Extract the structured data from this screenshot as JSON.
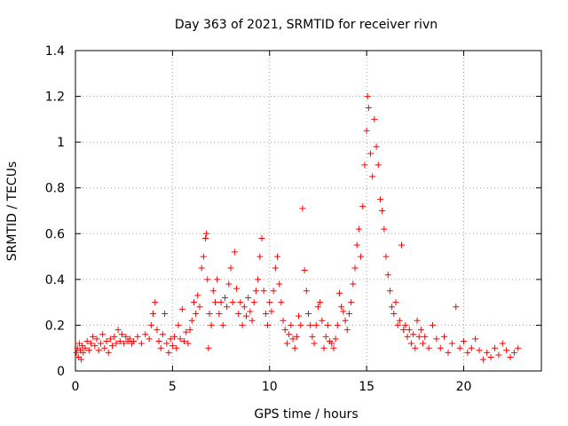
{
  "chart_data": {
    "type": "scatter",
    "title": "Day 363 of 2021, SRMTID for receiver rivn",
    "xlabel": "GPS time / hours",
    "ylabel": "SRMTID / TECUs",
    "xlim": [
      0,
      24
    ],
    "ylim": [
      0,
      1.4
    ],
    "xticks": [
      0,
      5,
      10,
      15,
      20
    ],
    "yticks": [
      0,
      0.2,
      0.4,
      0.6,
      0.8,
      1,
      1.2,
      1.4
    ],
    "xtick_labels": [
      "0",
      "5",
      "10",
      "15",
      "20"
    ],
    "ytick_labels": [
      "0",
      "0.2",
      "0.4",
      "0.6",
      "0.8",
      "1",
      "1.2",
      "1.4"
    ],
    "grid": true,
    "marker": "+",
    "color": "#ff0000",
    "series": [
      {
        "name": "SRMTID",
        "points": [
          [
            0.05,
            0.08
          ],
          [
            0.1,
            0.1
          ],
          [
            0.15,
            0.06
          ],
          [
            0.2,
            0.12
          ],
          [
            0.25,
            0.09
          ],
          [
            0.3,
            0.05
          ],
          [
            0.35,
            0.11
          ],
          [
            0.4,
            0.08
          ],
          [
            0.5,
            0.1
          ],
          [
            0.6,
            0.13
          ],
          [
            0.7,
            0.09
          ],
          [
            0.8,
            0.12
          ],
          [
            0.9,
            0.15
          ],
          [
            1.0,
            0.11
          ],
          [
            1.1,
            0.14
          ],
          [
            1.2,
            0.09
          ],
          [
            1.3,
            0.12
          ],
          [
            1.4,
            0.16
          ],
          [
            1.5,
            0.1
          ],
          [
            1.6,
            0.13
          ],
          [
            1.7,
            0.08
          ],
          [
            1.8,
            0.14
          ],
          [
            1.9,
            0.11
          ],
          [
            2.0,
            0.15
          ],
          [
            2.1,
            0.12
          ],
          [
            2.2,
            0.18
          ],
          [
            2.3,
            0.13
          ],
          [
            2.4,
            0.16
          ],
          [
            2.5,
            0.12
          ],
          [
            2.6,
            0.15
          ],
          [
            2.7,
            0.13
          ],
          [
            2.8,
            0.14
          ],
          [
            2.9,
            0.12
          ],
          [
            3.0,
            0.13
          ],
          [
            3.2,
            0.15
          ],
          [
            3.4,
            0.12
          ],
          [
            3.6,
            0.16
          ],
          [
            3.8,
            0.14
          ],
          [
            3.9,
            0.2
          ],
          [
            4.0,
            0.25
          ],
          [
            4.1,
            0.3
          ],
          [
            4.2,
            0.18
          ],
          [
            4.3,
            0.13
          ],
          [
            4.4,
            0.1
          ],
          [
            4.5,
            0.16
          ],
          [
            4.6,
            0.25
          ],
          [
            4.7,
            0.12
          ],
          [
            4.8,
            0.08
          ],
          [
            4.9,
            0.14
          ],
          [
            5.0,
            0.11
          ],
          [
            5.1,
            0.15
          ],
          [
            5.2,
            0.1
          ],
          [
            5.3,
            0.2
          ],
          [
            5.4,
            0.14
          ],
          [
            5.5,
            0.27
          ],
          [
            5.6,
            0.13
          ],
          [
            5.7,
            0.17
          ],
          [
            5.8,
            0.12
          ],
          [
            5.9,
            0.18
          ],
          [
            6.0,
            0.22
          ],
          [
            6.1,
            0.3
          ],
          [
            6.2,
            0.25
          ],
          [
            6.3,
            0.33
          ],
          [
            6.4,
            0.28
          ],
          [
            6.5,
            0.45
          ],
          [
            6.6,
            0.5
          ],
          [
            6.7,
            0.58
          ],
          [
            6.75,
            0.6
          ],
          [
            6.8,
            0.4
          ],
          [
            6.85,
            0.1
          ],
          [
            6.9,
            0.25
          ],
          [
            7.0,
            0.2
          ],
          [
            7.1,
            0.35
          ],
          [
            7.2,
            0.3
          ],
          [
            7.3,
            0.4
          ],
          [
            7.4,
            0.25
          ],
          [
            7.5,
            0.3
          ],
          [
            7.6,
            0.2
          ],
          [
            7.7,
            0.32
          ],
          [
            7.8,
            0.28
          ],
          [
            7.9,
            0.38
          ],
          [
            8.0,
            0.45
          ],
          [
            8.1,
            0.3
          ],
          [
            8.2,
            0.52
          ],
          [
            8.3,
            0.36
          ],
          [
            8.4,
            0.25
          ],
          [
            8.5,
            0.3
          ],
          [
            8.6,
            0.2
          ],
          [
            8.7,
            0.28
          ],
          [
            8.8,
            0.24
          ],
          [
            8.9,
            0.32
          ],
          [
            9.0,
            0.26
          ],
          [
            9.1,
            0.22
          ],
          [
            9.2,
            0.3
          ],
          [
            9.3,
            0.35
          ],
          [
            9.4,
            0.4
          ],
          [
            9.5,
            0.5
          ],
          [
            9.6,
            0.58
          ],
          [
            9.7,
            0.35
          ],
          [
            9.8,
            0.25
          ],
          [
            9.9,
            0.2
          ],
          [
            10.0,
            0.3
          ],
          [
            10.1,
            0.26
          ],
          [
            10.2,
            0.35
          ],
          [
            10.3,
            0.45
          ],
          [
            10.4,
            0.5
          ],
          [
            10.5,
            0.38
          ],
          [
            10.6,
            0.3
          ],
          [
            10.7,
            0.22
          ],
          [
            10.8,
            0.18
          ],
          [
            10.9,
            0.12
          ],
          [
            11.0,
            0.16
          ],
          [
            11.1,
            0.2
          ],
          [
            11.2,
            0.14
          ],
          [
            11.3,
            0.1
          ],
          [
            11.4,
            0.15
          ],
          [
            11.5,
            0.24
          ],
          [
            11.6,
            0.2
          ],
          [
            11.7,
            0.71
          ],
          [
            11.8,
            0.44
          ],
          [
            11.9,
            0.35
          ],
          [
            12.0,
            0.25
          ],
          [
            12.1,
            0.2
          ],
          [
            12.2,
            0.15
          ],
          [
            12.3,
            0.12
          ],
          [
            12.4,
            0.2
          ],
          [
            12.5,
            0.28
          ],
          [
            12.6,
            0.3
          ],
          [
            12.7,
            0.22
          ],
          [
            12.8,
            0.1
          ],
          [
            12.9,
            0.15
          ],
          [
            13.0,
            0.2
          ],
          [
            13.1,
            0.13
          ],
          [
            13.2,
            0.12
          ],
          [
            13.3,
            0.1
          ],
          [
            13.4,
            0.14
          ],
          [
            13.5,
            0.2
          ],
          [
            13.6,
            0.34
          ],
          [
            13.7,
            0.28
          ],
          [
            13.8,
            0.26
          ],
          [
            13.9,
            0.22
          ],
          [
            14.0,
            0.18
          ],
          [
            14.1,
            0.25
          ],
          [
            14.2,
            0.3
          ],
          [
            14.3,
            0.38
          ],
          [
            14.4,
            0.45
          ],
          [
            14.5,
            0.55
          ],
          [
            14.6,
            0.62
          ],
          [
            14.7,
            0.5
          ],
          [
            14.8,
            0.72
          ],
          [
            14.9,
            0.9
          ],
          [
            15.0,
            1.05
          ],
          [
            15.05,
            1.2
          ],
          [
            15.1,
            1.15
          ],
          [
            15.2,
            0.95
          ],
          [
            15.3,
            0.85
          ],
          [
            15.4,
            1.1
          ],
          [
            15.5,
            0.98
          ],
          [
            15.6,
            0.9
          ],
          [
            15.7,
            0.75
          ],
          [
            15.8,
            0.7
          ],
          [
            15.9,
            0.62
          ],
          [
            16.0,
            0.5
          ],
          [
            16.1,
            0.42
          ],
          [
            16.2,
            0.35
          ],
          [
            16.3,
            0.28
          ],
          [
            16.4,
            0.25
          ],
          [
            16.5,
            0.3
          ],
          [
            16.6,
            0.2
          ],
          [
            16.7,
            0.22
          ],
          [
            16.8,
            0.55
          ],
          [
            16.9,
            0.18
          ],
          [
            17.0,
            0.2
          ],
          [
            17.1,
            0.15
          ],
          [
            17.2,
            0.18
          ],
          [
            17.3,
            0.12
          ],
          [
            17.4,
            0.16
          ],
          [
            17.5,
            0.1
          ],
          [
            17.6,
            0.22
          ],
          [
            17.7,
            0.15
          ],
          [
            17.8,
            0.18
          ],
          [
            17.9,
            0.12
          ],
          [
            18.0,
            0.15
          ],
          [
            18.2,
            0.1
          ],
          [
            18.4,
            0.2
          ],
          [
            18.6,
            0.14
          ],
          [
            18.8,
            0.1
          ],
          [
            19.0,
            0.15
          ],
          [
            19.2,
            0.08
          ],
          [
            19.4,
            0.12
          ],
          [
            19.6,
            0.28
          ],
          [
            19.8,
            0.1
          ],
          [
            20.0,
            0.13
          ],
          [
            20.2,
            0.08
          ],
          [
            20.4,
            0.1
          ],
          [
            20.6,
            0.14
          ],
          [
            20.8,
            0.09
          ],
          [
            21.0,
            0.05
          ],
          [
            21.2,
            0.08
          ],
          [
            21.4,
            0.06
          ],
          [
            21.6,
            0.1
          ],
          [
            21.8,
            0.07
          ],
          [
            22.0,
            0.12
          ],
          [
            22.2,
            0.09
          ],
          [
            22.4,
            0.06
          ],
          [
            22.6,
            0.08
          ],
          [
            22.8,
            0.1
          ]
        ]
      }
    ]
  }
}
